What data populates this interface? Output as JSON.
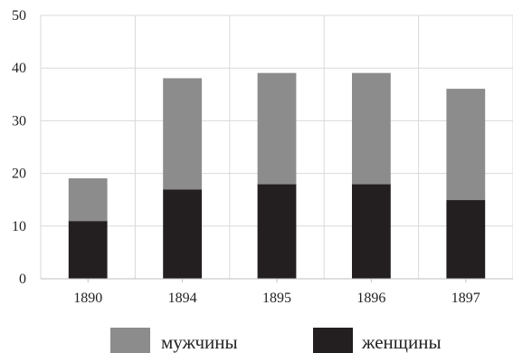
{
  "chart_data": {
    "type": "bar",
    "stacked": true,
    "categories": [
      "1890",
      "1894",
      "1895",
      "1896",
      "1897"
    ],
    "series": [
      {
        "name": "женщины",
        "values": [
          11,
          17,
          18,
          18,
          15
        ],
        "color": "#231f20"
      },
      {
        "name": "мужчины",
        "values": [
          8,
          21,
          21,
          21,
          21
        ],
        "color": "#8c8c8c"
      }
    ],
    "ylim": [
      0,
      50
    ],
    "yticks": [
      "0",
      "10",
      "20",
      "30",
      "40",
      "50"
    ],
    "grid": true,
    "legend_position": "bottom",
    "legend_order": [
      "мужчины",
      "женщины"
    ]
  }
}
